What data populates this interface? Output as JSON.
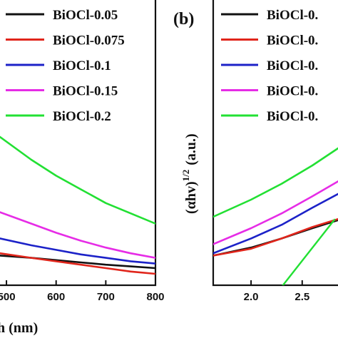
{
  "chart_data": [
    {
      "type": "line",
      "panel_label": "",
      "title": "",
      "xlabel": "h (nm)",
      "ylabel": "",
      "xlim": [
        487,
        800
      ],
      "ylim": [
        0,
        100
      ],
      "x_ticks": [
        {
          "value": 500,
          "label": "500"
        },
        {
          "value": 600,
          "label": "600"
        },
        {
          "value": 700,
          "label": "700"
        },
        {
          "value": 800,
          "label": "800"
        }
      ],
      "legend": {
        "placement": "top-right"
      },
      "series": [
        {
          "name": "BiOCl-0.05",
          "color": "#111111",
          "x": [
            487,
            550,
            600,
            650,
            700,
            750,
            800
          ],
          "y": [
            10.4,
            9.6,
            8.8,
            8.0,
            7.2,
            6.6,
            6.0
          ]
        },
        {
          "name": "BiOCl-0.075",
          "color": "#e0251b",
          "x": [
            487,
            550,
            600,
            650,
            700,
            750,
            800
          ],
          "y": [
            11.2,
            9.6,
            8.4,
            7.2,
            6.0,
            4.8,
            4.0
          ]
        },
        {
          "name": "BiOCl-0.1",
          "color": "#1c22c8",
          "x": [
            487,
            550,
            600,
            650,
            700,
            750,
            800
          ],
          "y": [
            16.4,
            14.0,
            12.4,
            10.8,
            9.6,
            8.4,
            7.6
          ]
        },
        {
          "name": "BiOCl-0.15",
          "color": "#e62ce6",
          "x": [
            487,
            550,
            600,
            650,
            700,
            750,
            800
          ],
          "y": [
            25.6,
            21.6,
            18.4,
            15.6,
            13.2,
            11.2,
            9.6
          ]
        },
        {
          "name": "BiOCl-0.2",
          "color": "#22e033",
          "x": [
            487,
            550,
            600,
            650,
            700,
            750,
            800
          ],
          "y": [
            52.0,
            44.0,
            38.4,
            33.6,
            28.8,
            25.2,
            21.6
          ]
        }
      ]
    },
    {
      "type": "line",
      "panel_label": "(b)",
      "title": "",
      "xlabel": "",
      "ylabel": "(αhv)",
      "ylabel_superscript": "1/2",
      "ylabel_units": "(a.u.)",
      "xlim": [
        1.63,
        2.85
      ],
      "ylim": [
        0,
        100
      ],
      "x_ticks": [
        {
          "value": 2.0,
          "label": "2.0"
        },
        {
          "value": 2.5,
          "label": "2.5"
        }
      ],
      "legend": {
        "placement": "top-right"
      },
      "series": [
        {
          "name": "BiOCl-0.",
          "color": "#111111",
          "x": [
            1.63,
            2.0,
            2.3,
            2.6,
            2.85
          ],
          "y": [
            10.4,
            13.2,
            16.4,
            20.0,
            22.8
          ]
        },
        {
          "name": "BiOCl-0.",
          "color": "#e0251b",
          "x": [
            1.63,
            2.0,
            2.3,
            2.6,
            2.85
          ],
          "y": [
            10.4,
            12.8,
            16.4,
            20.4,
            23.2
          ]
        },
        {
          "name": "BiOCl-0.",
          "color": "#1c22c8",
          "x": [
            1.63,
            2.0,
            2.3,
            2.6,
            2.85
          ],
          "y": [
            11.2,
            16.4,
            21.2,
            27.2,
            32.0
          ]
        },
        {
          "name": "BiOCl-0.",
          "color": "#e62ce6",
          "x": [
            1.63,
            2.0,
            2.3,
            2.6,
            2.85
          ],
          "y": [
            14.4,
            20.0,
            25.2,
            31.2,
            36.4
          ]
        },
        {
          "name": "BiOCl-0.",
          "color": "#22e033",
          "x": [
            1.63,
            2.0,
            2.3,
            2.6,
            2.85
          ],
          "y": [
            24.0,
            30.0,
            35.6,
            42.0,
            48.0
          ]
        }
      ],
      "tangent_line": {
        "color": "#22e033",
        "x": [
          2.11,
          2.82
        ],
        "y": [
          -9.2,
          23.2
        ]
      }
    }
  ]
}
